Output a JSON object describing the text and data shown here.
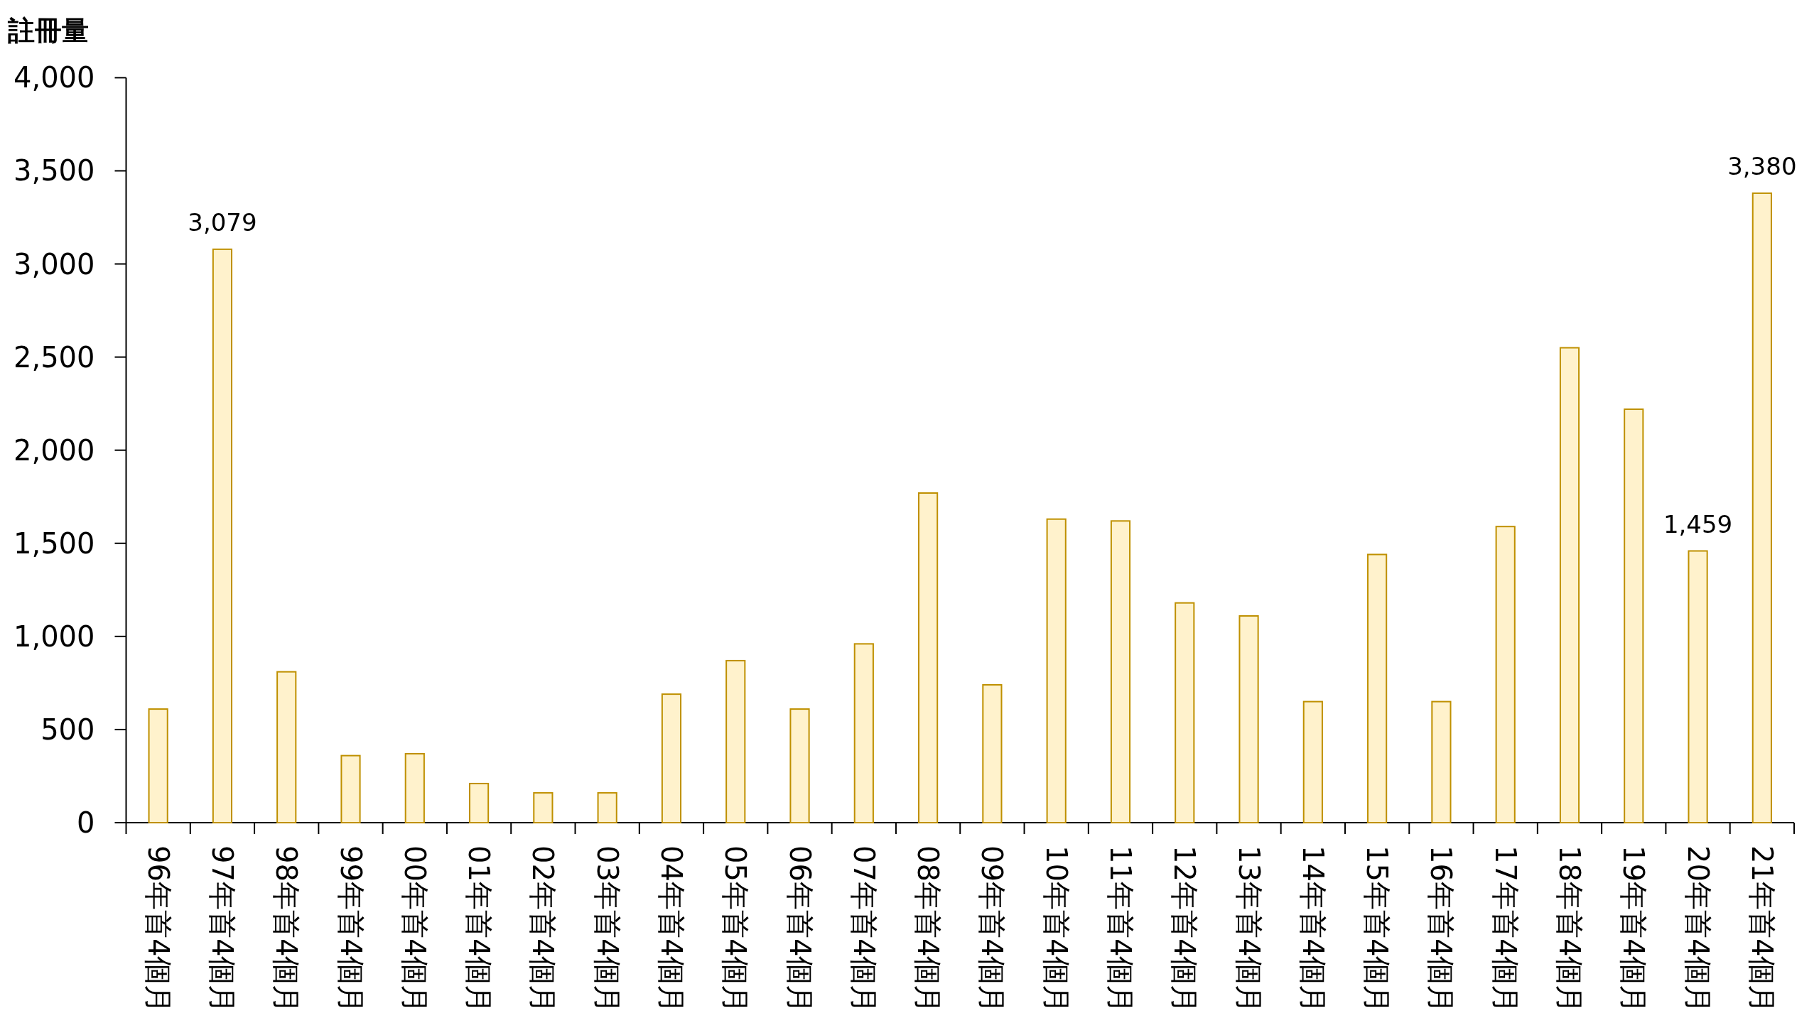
{
  "chart_data": {
    "type": "bar",
    "ylabel": "註冊量",
    "categories": [
      "96年首4個月",
      "97年首4個月",
      "98年首4個月",
      "99年首4個月",
      "00年首4個月",
      "01年首4個月",
      "02年首4個月",
      "03年首4個月",
      "04年首4個月",
      "05年首4個月",
      "06年首4個月",
      "07年首4個月",
      "08年首4個月",
      "09年首4個月",
      "10年首4個月",
      "11年首4個月",
      "12年首4個月",
      "13年首4個月",
      "14年首4個月",
      "15年首4個月",
      "16年首4個月",
      "17年首4個月",
      "18年首4個月",
      "19年首4個月",
      "20年首4個月",
      "21年首4個月"
    ],
    "values": [
      610,
      3079,
      810,
      360,
      370,
      210,
      160,
      160,
      690,
      870,
      610,
      960,
      1770,
      740,
      1630,
      1620,
      1180,
      1110,
      650,
      1440,
      650,
      1590,
      2550,
      2220,
      1459,
      3380
    ],
    "value_labels": [
      null,
      "3,079",
      null,
      null,
      null,
      null,
      null,
      null,
      null,
      null,
      null,
      null,
      null,
      null,
      null,
      null,
      null,
      null,
      null,
      null,
      null,
      null,
      null,
      null,
      "1,459",
      "3,380"
    ],
    "color": "#fff2cc",
    "ylim": [
      0,
      4000
    ],
    "yticks": [
      0,
      500,
      {
        "value": 1000,
        "label": "1,000"
      },
      {
        "value": 1500,
        "label": "1,500"
      },
      {
        "value": 2000,
        "label": "2,000"
      },
      {
        "value": 2500,
        "label": "2,500"
      },
      {
        "value": 3000,
        "label": "3,000"
      },
      {
        "value": 3500,
        "label": "3,500"
      },
      {
        "value": 4000,
        "label": "4,000"
      }
    ]
  }
}
